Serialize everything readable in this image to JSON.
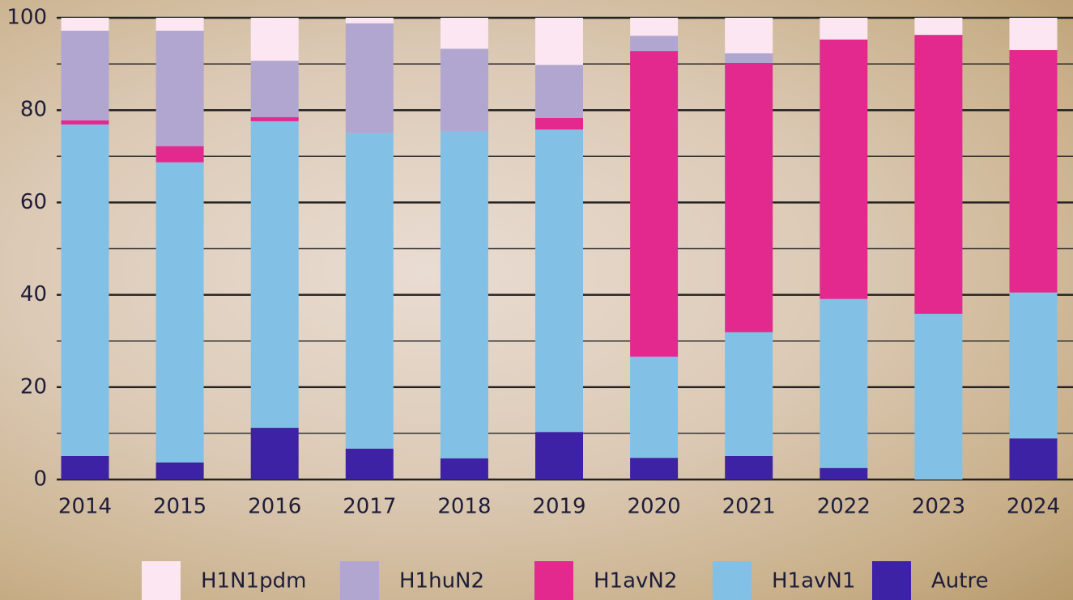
{
  "chart_data": {
    "type": "stacked_bar",
    "categories": [
      "2014",
      "2015",
      "2016",
      "2017",
      "2018",
      "2019",
      "2020",
      "2021",
      "2022",
      "2023",
      "2024"
    ],
    "series": [
      {
        "name": "H1N1pdm",
        "color": "#fbe6f1",
        "values": [
          2.8,
          2.8,
          9.3,
          1.2,
          6.7,
          10.2,
          3.9,
          7.7,
          4.7,
          3.7,
          7.0
        ]
      },
      {
        "name": "H1huN2",
        "color": "#b0a6d0",
        "values": [
          19.4,
          25.0,
          12.2,
          23.8,
          17.8,
          11.5,
          3.3,
          2.1,
          0,
          0,
          0
        ]
      },
      {
        "name": "H1avN2",
        "color": "#e3298e",
        "values": [
          0.9,
          3.5,
          0.9,
          0,
          0,
          2.5,
          66.2,
          58.3,
          56.2,
          60.4,
          52.5
        ]
      },
      {
        "name": "H1avN1",
        "color": "#82c0e6",
        "values": [
          71.8,
          65.0,
          66.4,
          68.3,
          70.9,
          65.5,
          21.9,
          26.8,
          36.6,
          35.9,
          31.6
        ]
      },
      {
        "name": "Autre",
        "color": "#3d22a6",
        "values": [
          5.1,
          3.7,
          11.2,
          6.7,
          4.6,
          10.3,
          4.7,
          5.1,
          2.5,
          0,
          8.9
        ]
      }
    ],
    "ylim": [
      0,
      100
    ],
    "yticks": [
      0,
      20,
      40,
      60,
      80,
      100
    ],
    "minor_yticks": [
      10,
      30,
      50,
      70,
      90
    ],
    "grid": true,
    "legend": "bottom"
  }
}
